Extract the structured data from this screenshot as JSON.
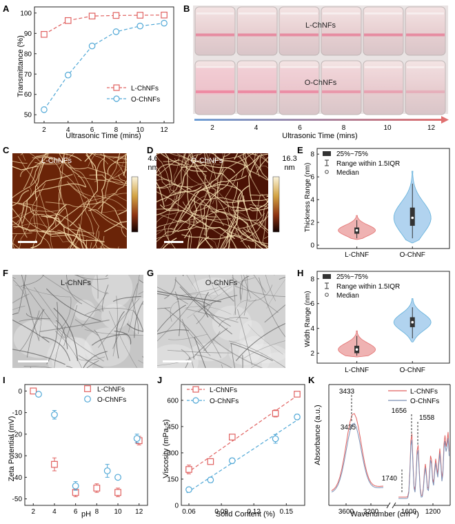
{
  "figure": {
    "panel_letters": [
      "A",
      "B",
      "C",
      "D",
      "E",
      "F",
      "G",
      "H",
      "I",
      "J",
      "K"
    ],
    "colors": {
      "l": "#e0605f",
      "o": "#4fa7d6",
      "l_fill": "#eeaaaa",
      "o_fill": "#a9cfee"
    },
    "photo_b": {
      "label_top": "L-ChNFs",
      "label_bottom": "O-ChNFs",
      "ticks": [
        "2",
        "4",
        "6",
        "8",
        "10",
        "12"
      ],
      "xlabel": "Ultrasonic Time (mins)"
    },
    "afm": [
      {
        "panel": "C",
        "label": "L-ChNFs",
        "scale_max": "4.6",
        "unit": "nm"
      },
      {
        "panel": "D",
        "label": "O-ChNFs",
        "scale_max": "16.3",
        "unit": "nm"
      }
    ],
    "tem": [
      {
        "panel": "F",
        "label": "L-ChNFs"
      },
      {
        "panel": "G",
        "label": "O-ChNFs"
      }
    ]
  },
  "chart_data": [
    {
      "panel": "A",
      "type": "line",
      "x": [
        2,
        4,
        6,
        8,
        10,
        12
      ],
      "series": [
        {
          "name": "L-ChNFs",
          "values": [
            89.5,
            96.3,
            98.5,
            98.8,
            98.9,
            99.0
          ]
        },
        {
          "name": "O-ChNFs",
          "values": [
            52.5,
            69.5,
            83.8,
            90.8,
            93.6,
            95.0
          ]
        }
      ],
      "xlabel": "Ultrasonic Time (mins)",
      "ylabel": "Transmittance (%)",
      "xticks": [
        "2",
        "4",
        "6",
        "8",
        "10",
        "12"
      ],
      "yticks": [
        "50",
        "60",
        "70",
        "80",
        "90",
        "100"
      ],
      "xlim": [
        1.2,
        12.8
      ],
      "ylim": [
        46,
        103
      ],
      "legend": "bottom-right"
    },
    {
      "panel": "E",
      "type": "violin",
      "categories": [
        "L-ChNF",
        "O-ChNF"
      ],
      "ylabel": "Thickness Range (nm)",
      "yticks": [
        "0",
        "2",
        "4",
        "6",
        "8"
      ],
      "ylim": [
        -0.3,
        8.5
      ],
      "legend_items": [
        "25%~75%",
        "Range within 1.5IQR",
        "Median"
      ],
      "violins": [
        {
          "name": "L-ChNF",
          "q1": 1.0,
          "median": 1.3,
          "q3": 1.55,
          "whisker_low": 0.6,
          "whisker_high": 2.2,
          "min": 0.5,
          "max": 2.6
        },
        {
          "name": "O-ChNF",
          "q1": 1.7,
          "median": 2.4,
          "q3": 3.3,
          "whisker_low": 0.6,
          "whisker_high": 5.4,
          "min": 0.2,
          "max": 6.5
        }
      ]
    },
    {
      "panel": "H",
      "type": "violin",
      "categories": [
        "L-ChNF",
        "O-ChNF"
      ],
      "ylabel": "Width Range (nm)",
      "yticks": [
        "2",
        "4",
        "6",
        "8"
      ],
      "ylim": [
        1.2,
        8.6
      ],
      "legend_items": [
        "25%~75%",
        "Range within 1.5IQR",
        "Median"
      ],
      "violins": [
        {
          "name": "L-ChNF",
          "q1": 2.0,
          "median": 2.3,
          "q3": 2.6,
          "whisker_low": 1.8,
          "whisker_high": 3.4,
          "min": 1.7,
          "max": 3.8
        },
        {
          "name": "O-ChNF",
          "q1": 4.1,
          "median": 4.5,
          "q3": 4.9,
          "whisker_low": 3.2,
          "whisker_high": 5.7,
          "min": 2.9,
          "max": 6.4
        }
      ]
    },
    {
      "panel": "I",
      "type": "scatter",
      "series": [
        {
          "name": "L-ChNFs",
          "x": [
            2,
            4,
            6,
            8,
            10,
            12
          ],
          "values": [
            0,
            -34,
            -47,
            -45,
            -47,
            -23
          ],
          "err": [
            1,
            3,
            2,
            2,
            2,
            2
          ]
        },
        {
          "name": "O-ChNFs",
          "x": [
            2.5,
            4,
            6,
            9,
            10,
            11.8
          ],
          "values": [
            -1.5,
            -11,
            -44,
            -37,
            -40,
            -22
          ],
          "err": [
            1,
            2,
            2,
            3,
            1,
            2
          ]
        }
      ],
      "xlabel": "pH",
      "ylabel": "Zeta Potential (mV)",
      "xticks": [
        "2",
        "4",
        "6",
        "8",
        "10",
        "12"
      ],
      "yticks": [
        "0",
        "-10",
        "-20",
        "-30",
        "-40",
        "-50"
      ],
      "xlim": [
        1.2,
        12.8
      ],
      "ylim": [
        -53,
        3
      ],
      "legend": "top-right"
    },
    {
      "panel": "J",
      "type": "line",
      "series": [
        {
          "name": "L-ChNFs",
          "x": [
            0.06,
            0.08,
            0.1,
            0.14,
            0.16
          ],
          "values": [
            205,
            250,
            390,
            525,
            635
          ],
          "err": [
            25,
            15,
            15,
            20,
            15
          ]
        },
        {
          "name": "O-ChNFs",
          "x": [
            0.06,
            0.08,
            0.1,
            0.14,
            0.16
          ],
          "values": [
            90,
            145,
            255,
            380,
            505
          ],
          "err": [
            10,
            15,
            15,
            25,
            15
          ]
        }
      ],
      "xlabel": "Solid Content (%)",
      "ylabel": "Viscosity (mPa·s)",
      "xticks": [
        "0.06",
        "0.09",
        "0.12",
        "0.15"
      ],
      "yticks": [
        "0",
        "150",
        "300",
        "450",
        "600"
      ],
      "xlim": [
        0.053,
        0.167
      ],
      "ylim": [
        0,
        690
      ],
      "legend": "top-left"
    },
    {
      "panel": "K",
      "type": "line",
      "series": [
        {
          "name": "L-ChNFs"
        },
        {
          "name": "O-ChNFs"
        }
      ],
      "xlabel": "Wavenumber (cm⁻¹)",
      "ylabel": "Absorbance (a.u.)",
      "xticks": [
        "3600",
        "3200",
        "1600",
        "1200"
      ],
      "annotations": [
        "3433",
        "3435",
        "1656",
        "1558",
        "1740"
      ],
      "legend": "top-right"
    }
  ]
}
